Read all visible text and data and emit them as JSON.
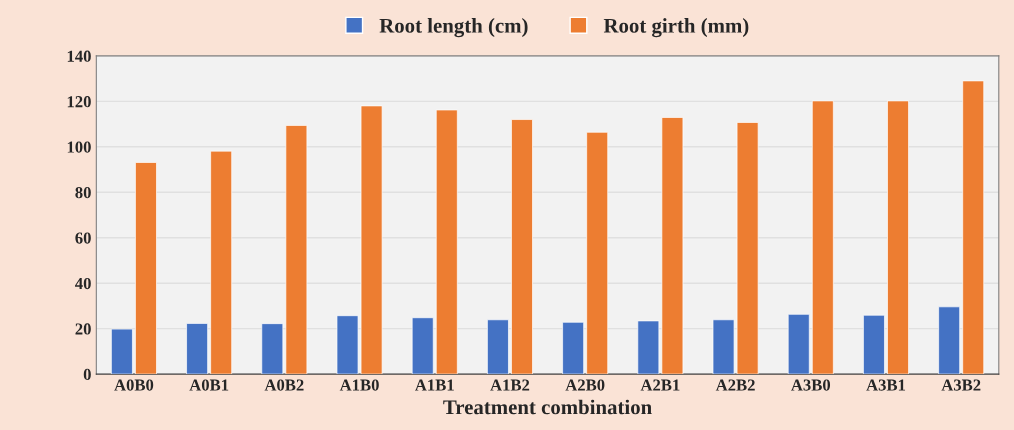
{
  "chart_data": {
    "type": "bar",
    "xlabel": "Treatment combination",
    "categories": [
      "A0B0",
      "A0B1",
      "A0B2",
      "A1B0",
      "A1B1",
      "A1B2",
      "A2B0",
      "A2B1",
      "A2B2",
      "A3B0",
      "A3B1",
      "A3B2"
    ],
    "series": [
      {
        "name": "Root length (cm)",
        "color": "#4472c4",
        "values": [
          19.8,
          22.3,
          22.2,
          25.7,
          24.8,
          23.9,
          22.8,
          23.4,
          23.9,
          26.3,
          25.9,
          29.6
        ]
      },
      {
        "name": "Root girth (mm)",
        "color": "#ed7d31",
        "values": [
          93.1,
          98.1,
          109.4,
          118.0,
          116.2,
          112.0,
          106.4,
          112.9,
          110.7,
          120.2,
          120.2,
          129.0
        ]
      }
    ],
    "ylim": [
      0,
      140
    ],
    "yticks": [
      0,
      20,
      40,
      60,
      80,
      100,
      120,
      140
    ],
    "grid": "y",
    "legend": "top"
  }
}
